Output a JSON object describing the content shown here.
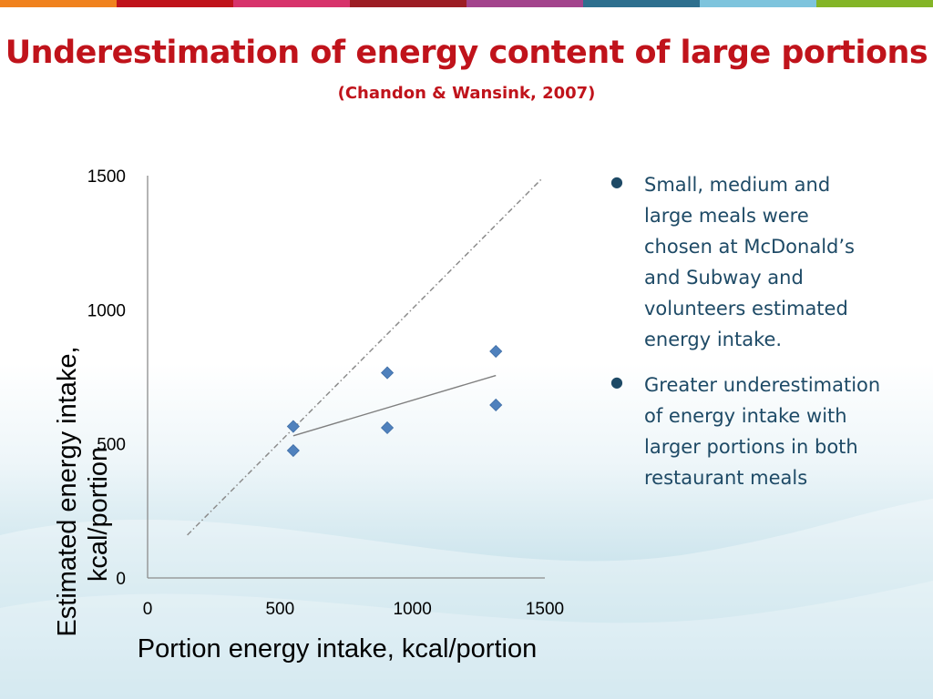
{
  "slide": {
    "title": "Underestimation of energy content of large portions",
    "subtitle": "(Chandon & Wansink, 2007)",
    "bullets": [
      "Small, medium and large meals were chosen at McDonald’s and Subway and volunteers estimated energy intake.",
      "Greater underestimation of energy intake with larger portions in both restaurant meals"
    ],
    "top_bar_colors": [
      "#f0821e",
      "#c0131b",
      "#d7336b",
      "#9c1d24",
      "#a3448c",
      "#2e6f8e",
      "#7ec4dd",
      "#84b527"
    ]
  },
  "chart_data": {
    "type": "scatter",
    "xlabel": "Portion energy intake, kcal/portion",
    "ylabel": "Estimated energy intake, kcal/portion",
    "xlim": [
      0,
      1500
    ],
    "ylim": [
      0,
      1500
    ],
    "xticks": [
      "0",
      "500",
      "1000",
      "1500"
    ],
    "yticks": [
      "0",
      "500",
      "1000",
      "1500"
    ],
    "grid": false,
    "legend": "none",
    "points": [
      {
        "x": 550,
        "y": 565
      },
      {
        "x": 550,
        "y": 475
      },
      {
        "x": 905,
        "y": 765
      },
      {
        "x": 905,
        "y": 560
      },
      {
        "x": 1315,
        "y": 845
      },
      {
        "x": 1315,
        "y": 645
      }
    ],
    "trend_line": {
      "x": [
        550,
        1315
      ],
      "y": [
        530,
        755
      ]
    },
    "identity_line": {
      "x": [
        150,
        1490
      ],
      "y": [
        160,
        1490
      ]
    },
    "colors": {
      "point": "#4f81bd",
      "trend": "#7f7f7f",
      "identity": "#8c8c8c",
      "axis": "#8c8c8c"
    }
  }
}
